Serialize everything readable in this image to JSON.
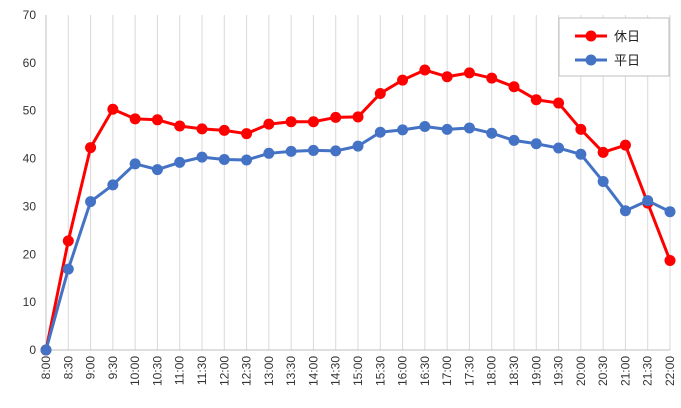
{
  "chart_data": {
    "type": "line",
    "categories": [
      "8:00",
      "8:30",
      "9:00",
      "9:30",
      "10:00",
      "10:30",
      "11:00",
      "11:30",
      "12:00",
      "12:30",
      "13:00",
      "13:30",
      "14:00",
      "14:30",
      "15:00",
      "15:30",
      "16:00",
      "16:30",
      "17:00",
      "17:30",
      "18:00",
      "18:30",
      "19:00",
      "19:30",
      "20:00",
      "20:30",
      "21:00",
      "21:30",
      "22:00"
    ],
    "series": [
      {
        "name": "休日",
        "color": "#ff0000",
        "values": [
          0,
          22.8,
          42.3,
          50.3,
          48.3,
          48.1,
          46.8,
          46.2,
          45.9,
          45.2,
          47.2,
          47.7,
          47.7,
          48.6,
          48.7,
          53.6,
          56.4,
          58.5,
          57.1,
          57.9,
          56.8,
          55.0,
          52.3,
          51.6,
          46.1,
          41.3,
          42.8,
          30.7,
          18.7
        ]
      },
      {
        "name": "平日",
        "color": "#4472c4",
        "values": [
          0,
          16.9,
          31.0,
          34.5,
          38.9,
          37.7,
          39.2,
          40.3,
          39.8,
          39.7,
          41.1,
          41.5,
          41.7,
          41.6,
          42.6,
          45.5,
          46.0,
          46.7,
          46.1,
          46.4,
          45.3,
          43.8,
          43.1,
          42.2,
          40.9,
          35.2,
          29.1,
          31.2,
          28.9
        ]
      }
    ],
    "yticks": [
      "0",
      "10",
      "20",
      "30",
      "40",
      "50",
      "60",
      "70"
    ],
    "ylim": [
      0,
      70
    ],
    "grid": "vertical-lines",
    "legend_position": "top-right"
  }
}
